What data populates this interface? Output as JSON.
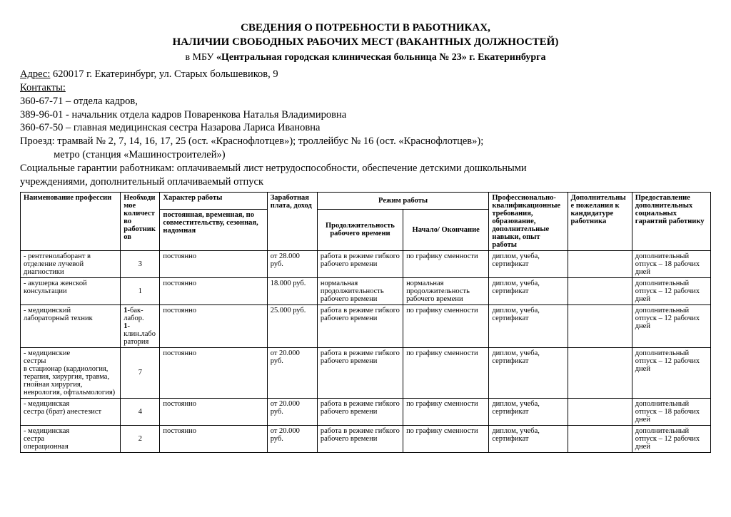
{
  "header": {
    "title_line1": "СВЕДЕНИЯ О ПОТРЕБНОСТИ В РАБОТНИКАХ,",
    "title_line2": "НАЛИЧИИ СВОБОДНЫХ РАБОЧИХ МЕСТ (ВАКАНТНЫХ ДОЛЖНОСТЕЙ)",
    "subtitle_prefix": "в МБУ ",
    "subtitle_bold": "«Центральная городская клиническая больница № 23»  г. Екатеринбурга"
  },
  "info": {
    "address_label": "Адрес:",
    "address": " 620017 г. Екатеринбург, ул. Старых большевиков, 9",
    "contacts_label": "Контакты:",
    "line1": "360-67-71 – отдела кадров,",
    "line2": "389-96-01 - начальник отдела кадров Поваренкова Наталья Владимировна",
    "line3": "360-67-50 – главная медицинская сестра Назарова Лариса Ивановна",
    "line4": "Проезд: трамвай № 2, 7, 14, 16, 17, 25 (ост. «Краснофлотцев»); троллейбус № 16 (ост. «Краснофлотцев»);",
    "line5": "             метро (станция «Машиностроителей»)",
    "line6": "Социальные гарантии работникам: оплачиваемый лист нетрудоспособности, обеспечение детскими дошкольными",
    "line7": "учреждениями, дополнительный оплачиваемый отпуск"
  },
  "table": {
    "headers": {
      "profession": "Наименование профессии",
      "qty": "Необходимое количество работников",
      "character": "Характер работы",
      "salary": "Заработная плата, доход",
      "mode": "Режим  работы",
      "requirements": "Профессионально-квалификационные требования, образование, дополнительные навыки, опыт работы",
      "wishes": "Дополнительные пожелания к кандидатуре работника",
      "benefits": "Предоставление дополнительных социальных гарантий работнику",
      "char_sub": "постоянная, временная, по совместительству, сезонная, надомная",
      "duration": "Продолжительность рабочего времени",
      "schedule": "Начало/ Окончание"
    },
    "rows": [
      {
        "profession": "- рентгенолаборант в отделение лучевой диагностики",
        "qty": "3",
        "character": "постоянно",
        "salary": "от 28.000 руб.",
        "duration": "работа в режиме гибкого рабочего времени",
        "schedule": "по графику сменности",
        "requirements": "диплом, учеба, сертификат",
        "wishes": "",
        "benefits": "дополнительный отпуск – 18 рабочих дней"
      },
      {
        "profession": "- акушерка женской консультации",
        "qty": "1",
        "character": "постоянно",
        "salary": "18.000 руб.",
        "duration": "нормальная продолжительность рабочего времени",
        "schedule": "нормальная продолжительность рабочего времени",
        "requirements": "диплом, учеба, сертификат",
        "wishes": "",
        "benefits": "дополнительный отпуск – 12 рабочих дней"
      },
      {
        "profession": "- медицинский лабораторный техник",
        "qty_html": "<b>1</b>-бак-лабор.<br><b>1</b>-клин.лаборатория",
        "character": "постоянно",
        "salary": "25.000 руб.",
        "duration": "работа в режиме гибкого рабочего времени",
        "schedule": "по графику сменности",
        "requirements": "диплом, учеба, сертификат",
        "wishes": "",
        "benefits": "дополнительный отпуск – 12 рабочих дней"
      },
      {
        "profession": "- медицинские\n   сестры\n   в стационар (кардиология, терапия, хирургия, травма, гнойная хирургия, неврология, офтальмология)",
        "qty": "7",
        "character": "постоянно",
        "salary": "от 20.000 руб.",
        "duration": "работа в режиме гибкого рабочего времени",
        "schedule": "по графику сменности",
        "requirements": "диплом, учеба, сертификат",
        "wishes": "",
        "benefits": "дополнительный отпуск – 12 рабочих дней"
      },
      {
        "profession": "- медицинская\n   сестра (брат) анестезист",
        "qty": "4",
        "character": "постоянно",
        "salary": "от 20.000 руб.",
        "duration": "работа в режиме гибкого рабочего времени",
        "schedule": "по графику сменности",
        "requirements": "диплом, учеба, сертификат",
        "wishes": "",
        "benefits": "дополнительный отпуск – 18 рабочих дней"
      },
      {
        "profession": "- медицинская\n   сестра\n   операционная",
        "qty": "2",
        "character": "постоянно",
        "salary": "от 20.000 руб.",
        "duration": "работа в режиме гибкого рабочего времени",
        "schedule": "по графику сменности",
        "requirements": "диплом, учеба, сертификат",
        "wishes": "",
        "benefits": "дополнительный отпуск – 12 рабочих дней"
      }
    ]
  }
}
